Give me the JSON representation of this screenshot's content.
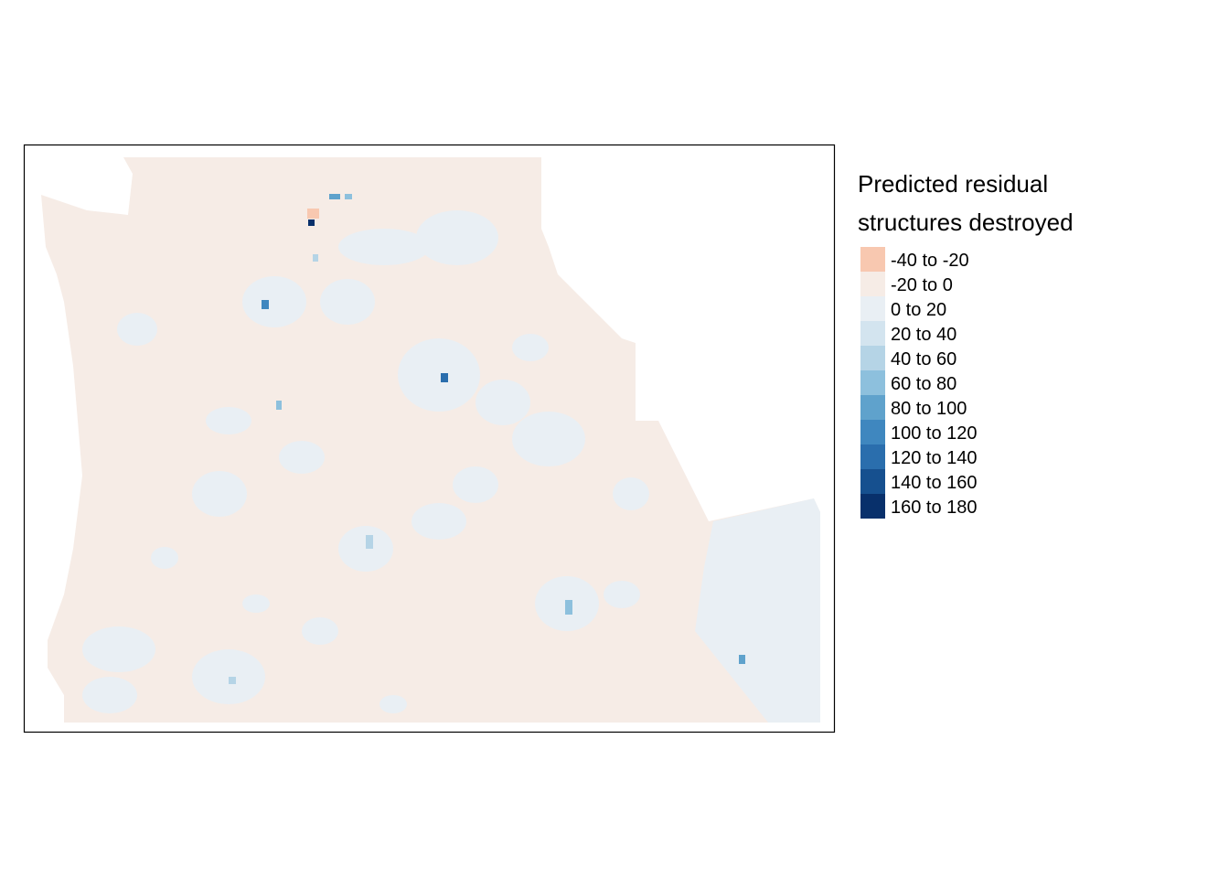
{
  "legend": {
    "title": [
      "Predicted residual",
      "structures destroyed"
    ],
    "entries": [
      {
        "label": "-40 to -20",
        "color": "#f8c8b0"
      },
      {
        "label": "-20 to 0",
        "color": "#f6ece6"
      },
      {
        "label": "0 to 20",
        "color": "#e9eff4"
      },
      {
        "label": "20 to 40",
        "color": "#d3e4ef"
      },
      {
        "label": "40 to 60",
        "color": "#b5d4e6"
      },
      {
        "label": "60 to 80",
        "color": "#8dc0dd"
      },
      {
        "label": "80 to 100",
        "color": "#5fa2cc"
      },
      {
        "label": "100 to 120",
        "color": "#3f87bf"
      },
      {
        "label": "120 to 140",
        "color": "#2a6ead"
      },
      {
        "label": "140 to 160",
        "color": "#16508f"
      },
      {
        "label": "160 to 180",
        "color": "#08306b"
      }
    ]
  }
}
